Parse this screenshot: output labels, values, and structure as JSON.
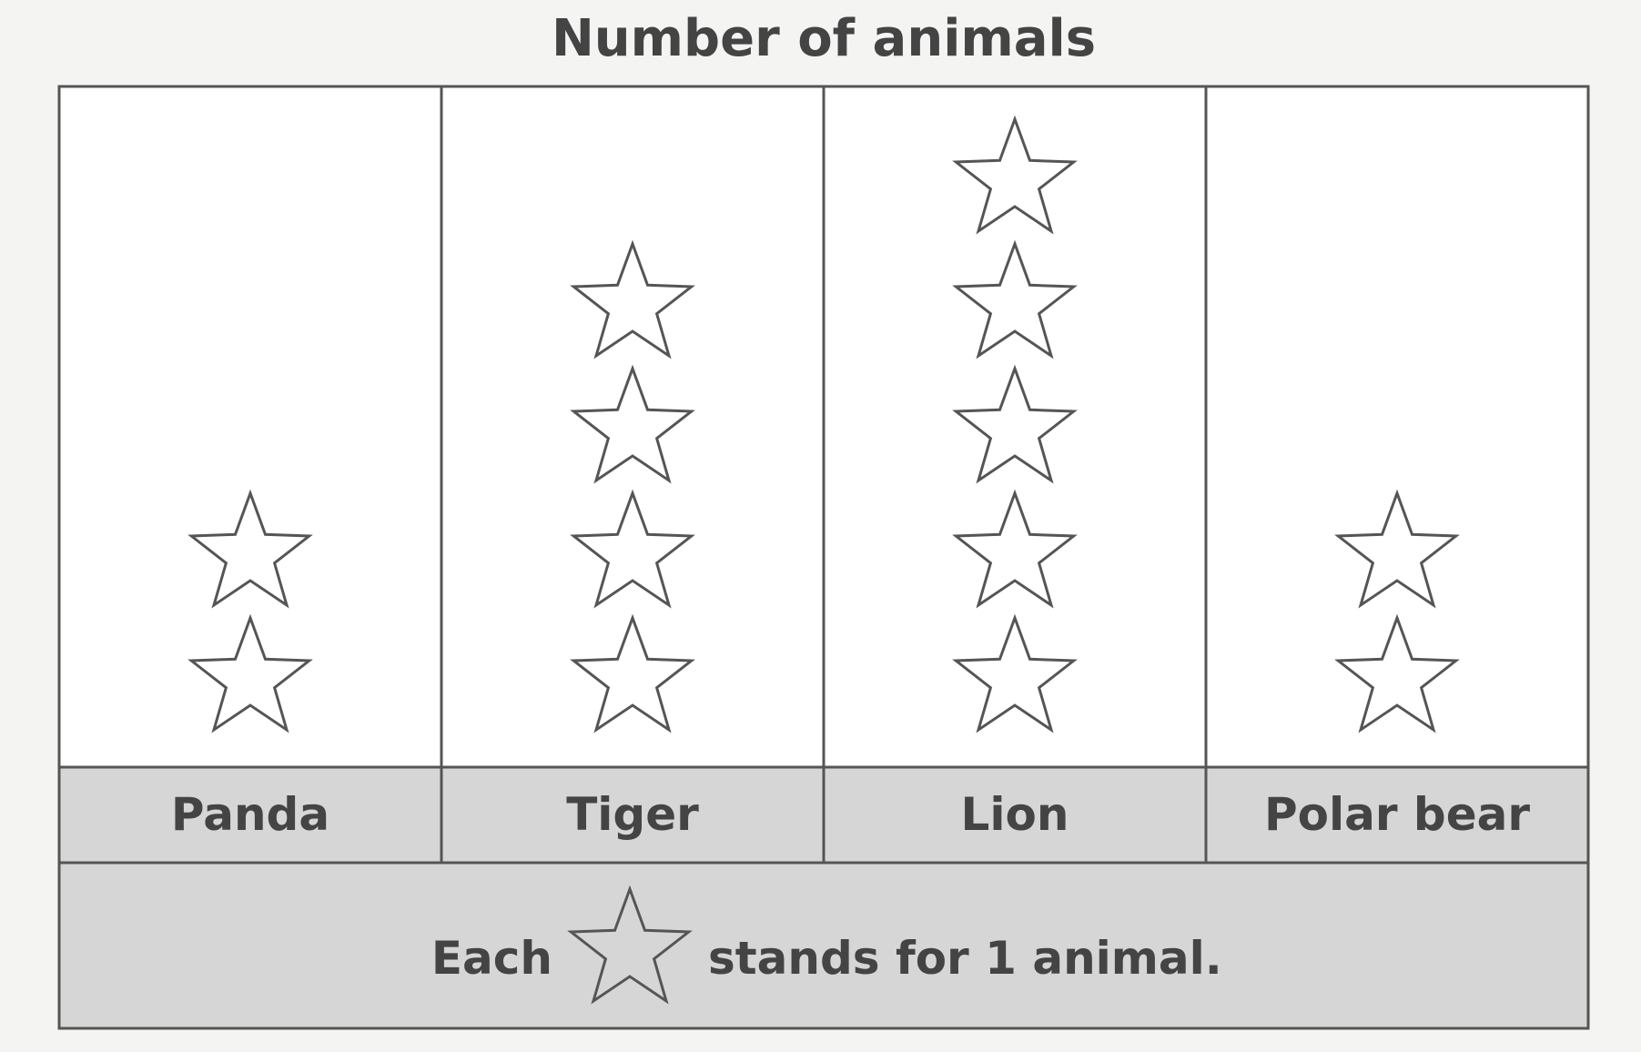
{
  "chart_data": {
    "type": "pictograph",
    "title": "Number of animals",
    "categories": [
      "Panda",
      "Tiger",
      "Lion",
      "Polar bear"
    ],
    "values": [
      2,
      4,
      5,
      2
    ],
    "key": {
      "prefix": "Each",
      "suffix": "stands for 1 animal.",
      "units_per_symbol": 1,
      "symbol": "star-icon"
    }
  },
  "colors": {
    "border": "#555555",
    "label_band": "#d6d6d6",
    "plot_bg": "#ffffff",
    "text": "#444444"
  }
}
